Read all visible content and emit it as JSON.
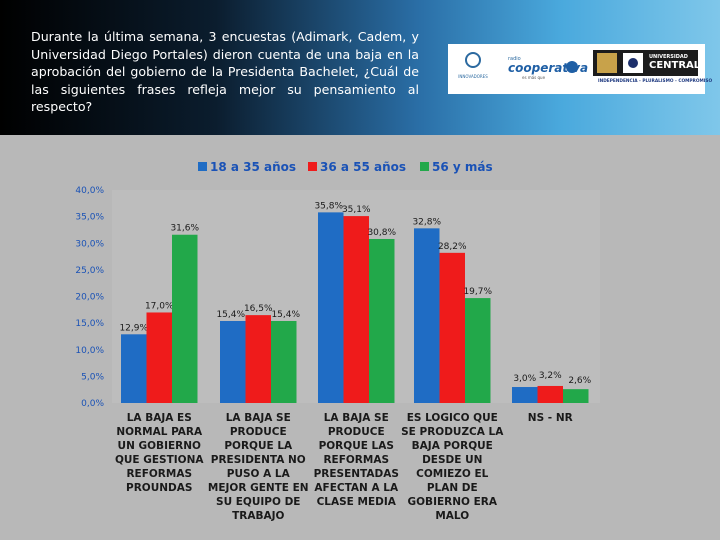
{
  "question": "Durante la última semana, 3 encuestas (Adimark, Cadem, y Universidad Diego Portales) dieron cuenta de una baja en la aprobación del gobierno de la Presidenta Bachelet, ¿Cuál de las siguientes frases refleja mejor su pensamiento al respecto?",
  "logos": {
    "innovadores": "INNOVADORES",
    "coop_small": "radio",
    "coop_name": "cooperativa",
    "coop_tag": "es más que",
    "udp_line1": "UNIVERSIDAD",
    "udp_line2": "CENTRAL",
    "udp_tagline": "INDEPENDENCIA - PLURALISMO - COMPROMISO"
  },
  "colors": {
    "series1": "#1f6cc4",
    "series2": "#ef1b1b",
    "series3": "#22a84a",
    "axis_text": "#1a52b6"
  },
  "chart_data": {
    "type": "bar",
    "title": "",
    "xlabel": "",
    "ylabel": "",
    "ylim": [
      0,
      40
    ],
    "yticks": [
      "0,0%",
      "5,0%",
      "10,0%",
      "15,0%",
      "20,0%",
      "25,0%",
      "30,0%",
      "35,0%",
      "40,0%"
    ],
    "legend_position": "top",
    "grid": false,
    "categories": [
      [
        "LA BAJA ES",
        "NORMAL PARA",
        "UN GOBIERNO",
        "QUE GESTIONA",
        "REFORMAS",
        "PROUNDAS"
      ],
      [
        "LA BAJA SE",
        "PRODUCE",
        "PORQUE LA",
        "PRESIDENTA NO",
        "PUSO A LA",
        "MEJOR GENTE EN",
        "SU EQUIPO DE",
        "TRABAJO"
      ],
      [
        "LA BAJA SE",
        "PRODUCE",
        "PORQUE LAS",
        "REFORMAS",
        "PRESENTADAS",
        "AFECTAN A LA",
        "CLASE MEDIA"
      ],
      [
        "ES LOGICO QUE",
        "SE PRODUZCA LA",
        "BAJA PORQUE",
        "DESDE UN",
        "COMIEZO EL",
        "PLAN DE",
        "GOBIERNO ERA",
        "MALO"
      ],
      [
        "NS - NR"
      ]
    ],
    "series": [
      {
        "name": "18 a 35 años",
        "values": [
          12.9,
          15.4,
          35.8,
          32.8,
          3.0
        ],
        "labels": [
          "12,9%",
          "15,4%",
          "35,8%",
          "32,8%",
          "3,0%"
        ]
      },
      {
        "name": "36 a 55 años",
        "values": [
          17.0,
          16.5,
          35.1,
          28.2,
          3.2
        ],
        "labels": [
          "17,0%",
          "16,5%",
          "35,1%",
          "28,2%",
          "3,2%"
        ]
      },
      {
        "name": "56 y más",
        "values": [
          31.6,
          15.4,
          30.8,
          19.7,
          2.6
        ],
        "labels": [
          "31,6%",
          "15,4%",
          "30,8%",
          "19,7%",
          "2,6%"
        ]
      }
    ]
  }
}
